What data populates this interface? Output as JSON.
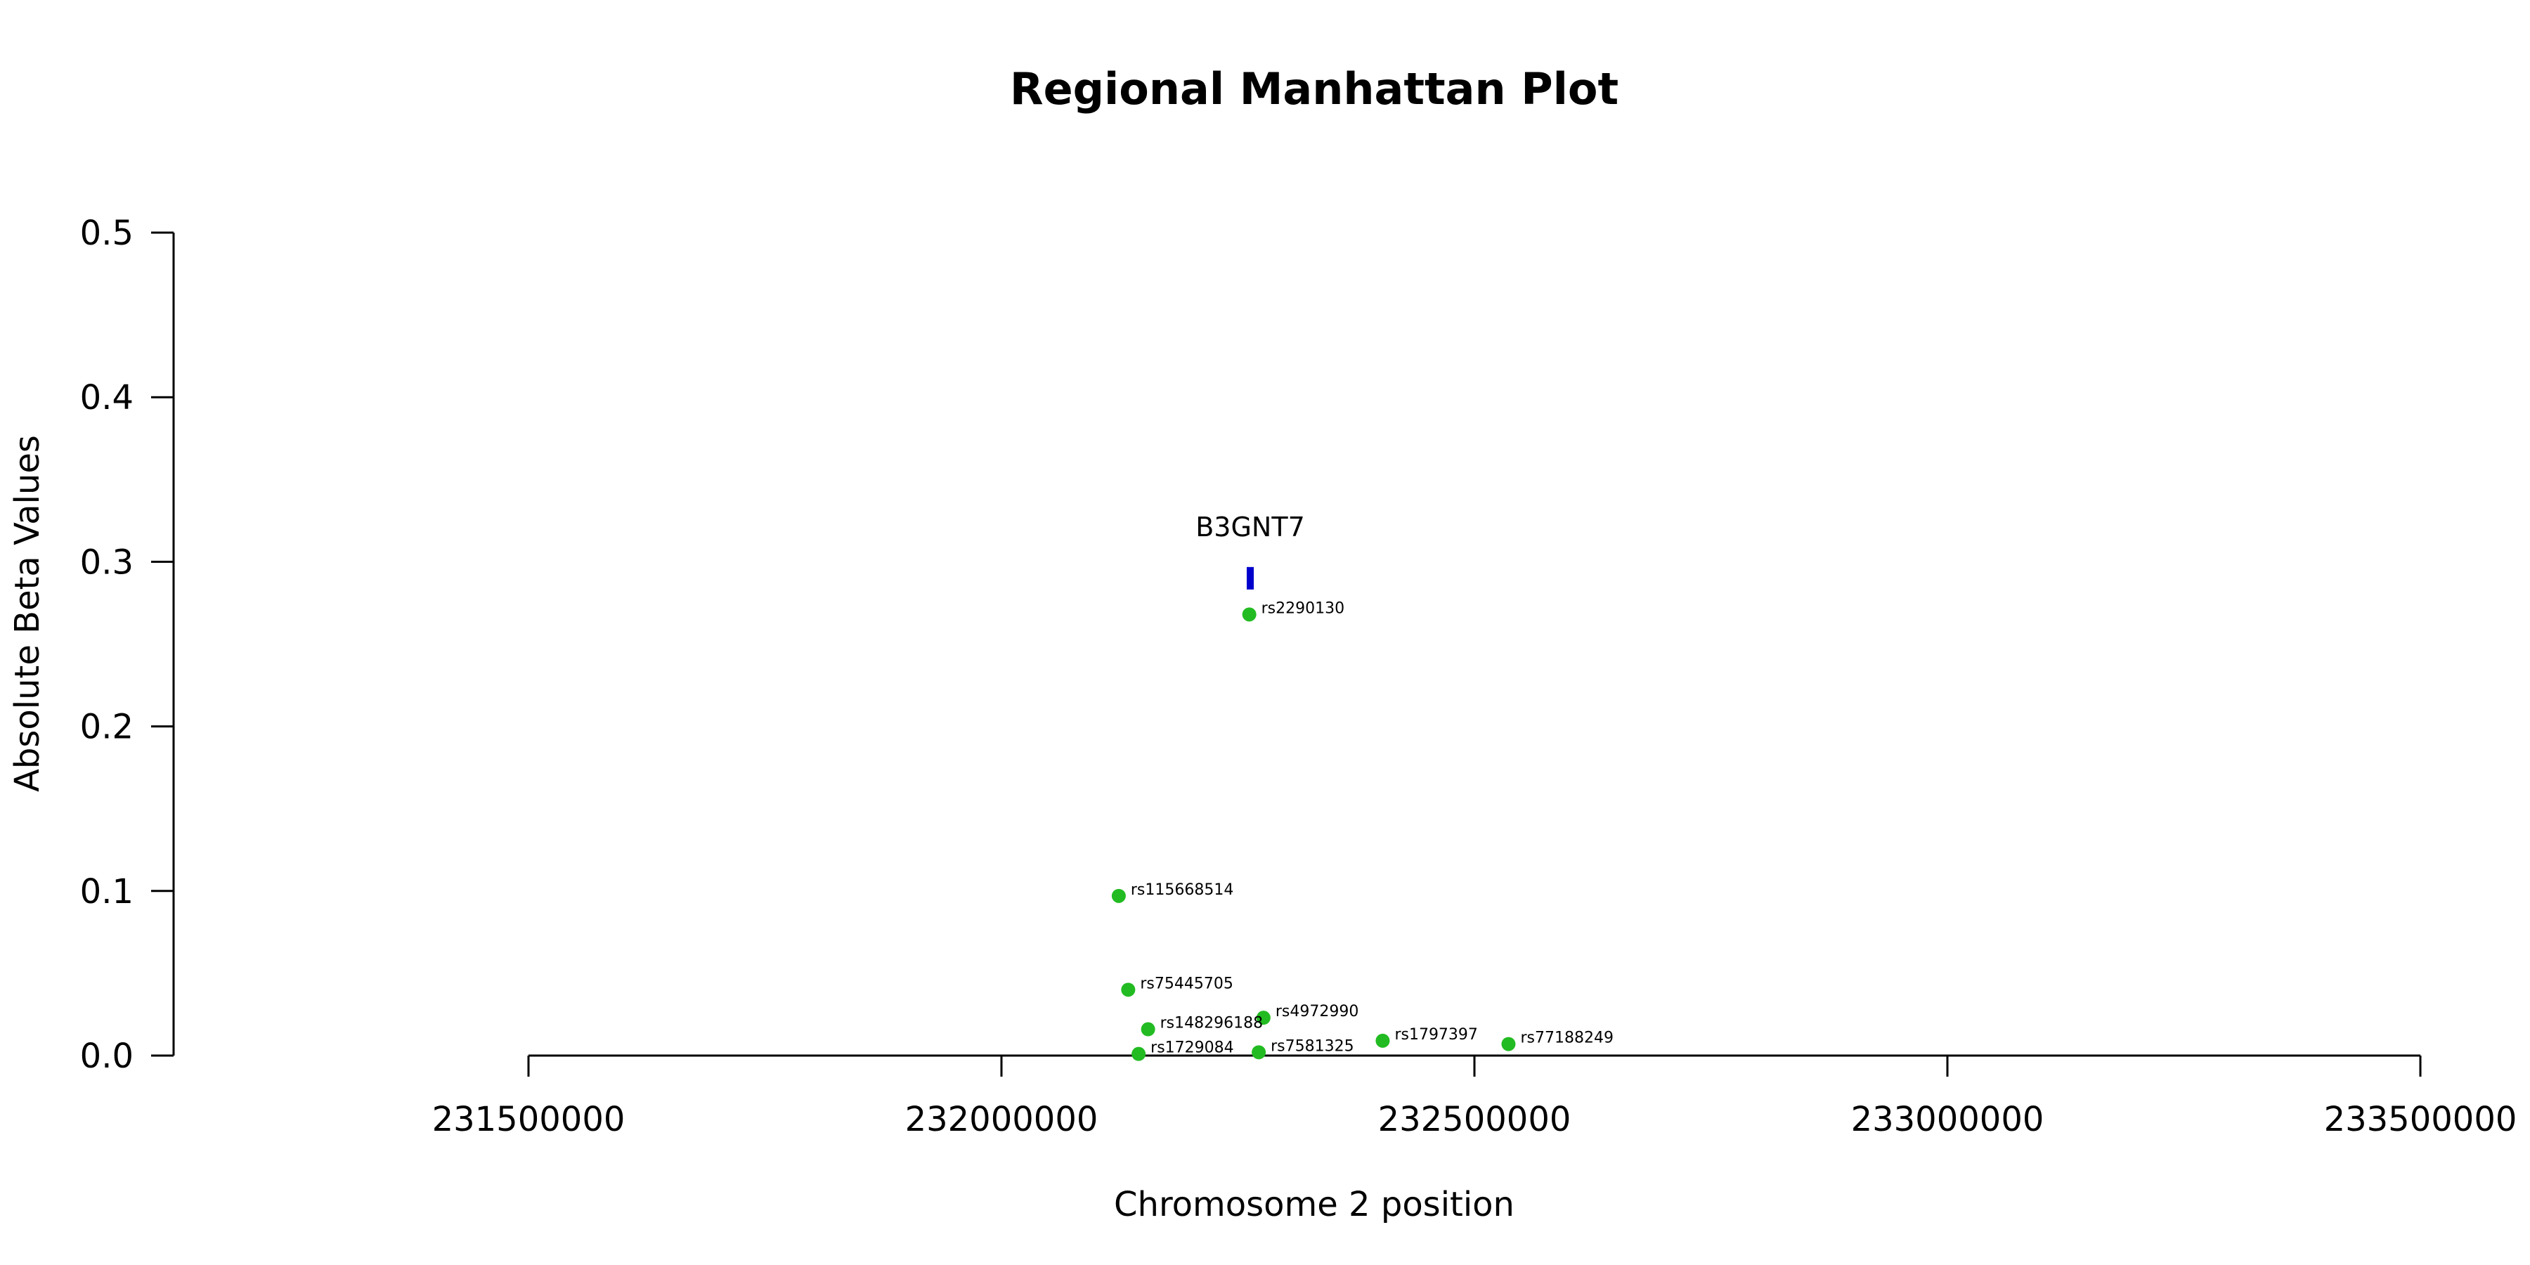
{
  "chart_data": {
    "type": "scatter",
    "title": "Regional Manhattan Plot",
    "xlabel": "Chromosome 2 position",
    "ylabel": "Absolute Beta Values",
    "xlim": [
      231500000,
      233500000
    ],
    "ylim": [
      0,
      0.5
    ],
    "x_ticks": [
      231500000,
      232000000,
      232500000,
      233000000,
      233500000
    ],
    "x_tick_labels": [
      "231500000",
      "232000000",
      "232500000",
      "233000000",
      "233500000"
    ],
    "y_ticks": [
      0,
      0.1,
      0.2,
      0.3,
      0.4,
      0.5
    ],
    "y_tick_labels": [
      "0.0",
      "0.1",
      "0.2",
      "0.3",
      "0.4",
      "0.5"
    ],
    "grid": false,
    "point_color": "#22bb22",
    "gene_color": "#0000cc",
    "points": [
      {
        "label": "rs2290130",
        "x": 232262000,
        "y": 0.268
      },
      {
        "label": "rs115668514",
        "x": 232124000,
        "y": 0.097
      },
      {
        "label": "rs75445705",
        "x": 232134000,
        "y": 0.04
      },
      {
        "label": "rs4972990",
        "x": 232277000,
        "y": 0.023
      },
      {
        "label": "rs148296188",
        "x": 232155000,
        "y": 0.016
      },
      {
        "label": "rs1797397",
        "x": 232403000,
        "y": 0.009
      },
      {
        "label": "rs77188249",
        "x": 232536000,
        "y": 0.007
      },
      {
        "label": "rs7581325",
        "x": 232272000,
        "y": 0.002
      },
      {
        "label": "rs1729084",
        "x": 232145000,
        "y": 0.001
      }
    ],
    "genes": [
      {
        "name": "B3GNT7",
        "start": 232261000,
        "end": 232265000,
        "y": 0.29
      }
    ]
  }
}
